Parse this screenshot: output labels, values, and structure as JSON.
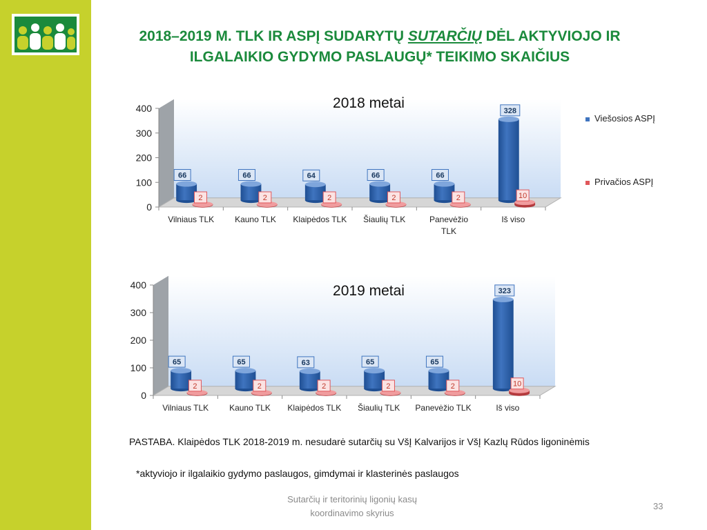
{
  "slide": {
    "title_line1_pre": "2018–2019 M. TLK IR ASPĮ SUDARYTŲ ",
    "title_line1_em": "SUTARČIŲ",
    "title_line1_post": " DĖL AKTYVIOJO IR",
    "title_line2": "ILGALAIKIO GYDYMO PASLAUGŲ* TEIKIMO SKAIČIUS",
    "note": "PASTABA.  Klaipėdos TLK 2018-2019 m. nesudarė sutarčių su VšĮ Kalvarijos ir VšĮ Kazlų Rūdos ligoninėmis",
    "footnote": "*aktyviojo ir ilgalaikio gydymo paslaugos, gimdymai ir klasterinės paslaugos",
    "footer_line1": "Sutarčių ir teritorinių ligonių kasų",
    "footer_line2": "koordinavimo skyrius",
    "page_number": "33"
  },
  "legend": [
    {
      "name": "Viešosios ASPĮ",
      "color": "#3f74bf"
    },
    {
      "name": "Privačios ASPĮ",
      "color": "#e0575a"
    }
  ],
  "chart_data": [
    {
      "type": "bar",
      "title": "2018 metai",
      "categories": [
        [
          "Vilniaus TLK"
        ],
        [
          "Kauno TLK"
        ],
        [
          "Klaipėdos TLK"
        ],
        [
          "Šiaulių TLK"
        ],
        [
          "Panevėžio",
          "TLK"
        ],
        [
          "Iš viso"
        ]
      ],
      "series": [
        {
          "name": "Viešosios ASPĮ",
          "values": [
            66,
            66,
            64,
            66,
            66,
            328
          ]
        },
        {
          "name": "Privačios ASPĮ",
          "values": [
            2,
            2,
            2,
            2,
            2,
            10
          ]
        }
      ],
      "ylim": [
        0,
        400
      ],
      "yticks": [
        0,
        100,
        200,
        300,
        400
      ],
      "legend": "right"
    },
    {
      "type": "bar",
      "title": "2019 metai",
      "categories": [
        [
          "Vilniaus TLK"
        ],
        [
          "Kauno TLK"
        ],
        [
          "Klaipėdos TLK"
        ],
        [
          "Šiaulių TLK"
        ],
        [
          "Panevėžio TLK"
        ],
        [
          "Iš viso"
        ]
      ],
      "series": [
        {
          "name": "Viešosios ASPĮ",
          "values": [
            65,
            65,
            63,
            65,
            65,
            323
          ]
        },
        {
          "name": "Privačios ASPĮ",
          "values": [
            2,
            2,
            2,
            2,
            2,
            10
          ]
        }
      ],
      "ylim": [
        0,
        400
      ],
      "yticks": [
        0,
        100,
        200,
        300,
        400
      ]
    }
  ]
}
